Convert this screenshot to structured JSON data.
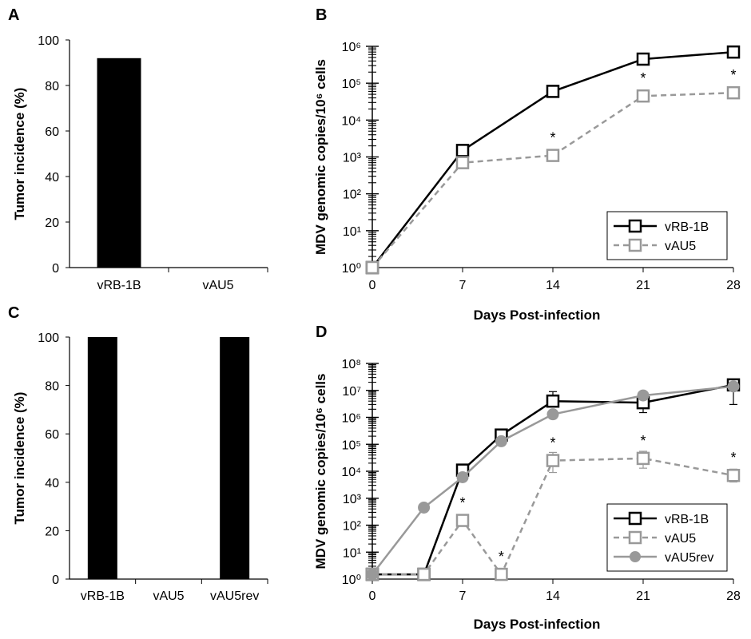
{
  "chart_data": [
    {
      "panel": "A",
      "type": "bar",
      "ylabel": "Tumor incidence (%)",
      "xlabel": "",
      "ylim": [
        0,
        100
      ],
      "yticks": [
        "0",
        "20",
        "40",
        "60",
        "80",
        "100"
      ],
      "categories": [
        "vRB-1B",
        "vAU5"
      ],
      "values": [
        92,
        0
      ],
      "bar_color": "#000000"
    },
    {
      "panel": "B",
      "type": "line",
      "xlabel": "Days Post-infection",
      "ylabel": "MDV genomic copies/10⁶ cells",
      "y_scale": "log",
      "ylim": [
        1,
        1000000
      ],
      "xlim": [
        0,
        28
      ],
      "xticks": [
        "0",
        "7",
        "14",
        "21",
        "28"
      ],
      "yticks": [
        "10⁰",
        "10¹",
        "10²",
        "10³",
        "10⁴",
        "10⁵",
        "10⁶"
      ],
      "legend_position": "bottom-right",
      "series": [
        {
          "name": "vRB-1B",
          "x": [
            0,
            7,
            14,
            21,
            28
          ],
          "y": [
            1,
            1500,
            60000,
            450000,
            700000
          ],
          "color": "#000000",
          "dash": "solid",
          "marker": "open-square"
        },
        {
          "name": "vAU5",
          "x": [
            0,
            7,
            14,
            21,
            28
          ],
          "y": [
            1,
            700,
            1100,
            45000,
            55000
          ],
          "color": "#999999",
          "dash": "dashed",
          "marker": "open-square"
        }
      ],
      "annotations": [
        {
          "text": "*",
          "x": 14,
          "y": 1100
        },
        {
          "text": "*",
          "x": 21,
          "y": 45000
        },
        {
          "text": "*",
          "x": 28,
          "y": 55000
        }
      ]
    },
    {
      "panel": "C",
      "type": "bar",
      "ylabel": "Tumor incidence (%)",
      "xlabel": "",
      "ylim": [
        0,
        100
      ],
      "yticks": [
        "0",
        "20",
        "40",
        "60",
        "80",
        "100"
      ],
      "categories": [
        "vRB-1B",
        "vAU5",
        "vAU5rev"
      ],
      "values": [
        100,
        0,
        100
      ],
      "bar_color": "#000000"
    },
    {
      "panel": "D",
      "type": "line",
      "xlabel": "Days Post-infection",
      "ylabel": "MDV genomic copies/10⁶ cells",
      "y_scale": "log",
      "ylim": [
        1,
        100000000
      ],
      "xlim": [
        0,
        28
      ],
      "xticks": [
        "0",
        "7",
        "14",
        "21",
        "28"
      ],
      "yticks": [
        "10⁰",
        "10¹",
        "10²",
        "10³",
        "10⁴",
        "10⁵",
        "10⁶",
        "10⁷",
        "10⁸"
      ],
      "legend_position": "bottom-right",
      "series": [
        {
          "name": "vRB-1B",
          "x": [
            0,
            4,
            7,
            10,
            14,
            21,
            28
          ],
          "y": [
            1.5,
            1.5,
            11000,
            220000,
            4000000,
            3500000,
            16000000
          ],
          "err_hi": [
            1.5,
            1.5,
            14000,
            300000,
            9000000,
            6500000,
            22000000
          ],
          "err_lo": [
            1.5,
            1.5,
            9000,
            150000,
            2500000,
            1500000,
            3000000
          ],
          "color": "#000000",
          "dash": "solid",
          "marker": "open-square"
        },
        {
          "name": "vAU5",
          "x": [
            0,
            4,
            7,
            10,
            14,
            21,
            28
          ],
          "y": [
            1.5,
            1.5,
            150,
            1.5,
            25000,
            30000,
            7000
          ],
          "err_hi": [
            1.5,
            1.5,
            190,
            1.5,
            50000,
            55000,
            12000
          ],
          "err_lo": [
            1.5,
            1.5,
            110,
            1.5,
            9000,
            13000,
            4000
          ],
          "color": "#999999",
          "dash": "dashed",
          "marker": "open-square"
        },
        {
          "name": "vAU5rev",
          "x": [
            0,
            4,
            7,
            10,
            14,
            21,
            28
          ],
          "y": [
            1.5,
            450,
            6000,
            130000,
            1300000,
            6500000,
            14000000
          ],
          "color": "#999999",
          "dash": "solid",
          "marker": "filled-circle"
        }
      ],
      "annotations": [
        {
          "text": "*",
          "x": 7,
          "y": 150
        },
        {
          "text": "*",
          "x": 10,
          "y": 1.5
        },
        {
          "text": "*",
          "x": 14,
          "y": 25000
        },
        {
          "text": "*",
          "x": 21,
          "y": 30000
        },
        {
          "text": "*",
          "x": 28,
          "y": 7000
        }
      ]
    }
  ]
}
